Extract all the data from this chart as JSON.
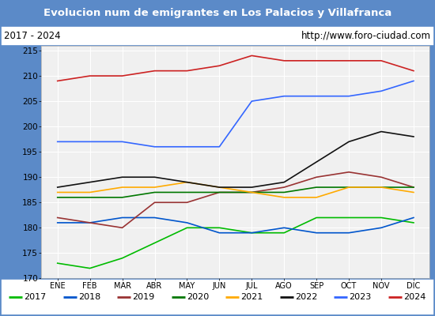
{
  "title": "Evolucion num de emigrantes en Los Palacios y Villafranca",
  "subtitle_left": "2017 - 2024",
  "subtitle_right": "http://www.foro-ciudad.com",
  "xlabel_months": [
    "ENE",
    "FEB",
    "MAR",
    "ABR",
    "MAY",
    "JUN",
    "JUL",
    "AGO",
    "SEP",
    "OCT",
    "NOV",
    "DIC"
  ],
  "ylim": [
    170,
    216
  ],
  "yticks": [
    170,
    175,
    180,
    185,
    190,
    195,
    200,
    205,
    210,
    215
  ],
  "series": {
    "2017": {
      "color": "#00bb00",
      "values": [
        173,
        172,
        174,
        177,
        180,
        180,
        179,
        179,
        182,
        182,
        182,
        181
      ]
    },
    "2018": {
      "color": "#0055cc",
      "values": [
        181,
        181,
        182,
        182,
        181,
        179,
        179,
        180,
        179,
        179,
        180,
        182
      ]
    },
    "2019": {
      "color": "#993333",
      "values": [
        182,
        181,
        180,
        185,
        185,
        187,
        187,
        188,
        190,
        191,
        190,
        188
      ]
    },
    "2020": {
      "color": "#007700",
      "values": [
        186,
        186,
        186,
        187,
        187,
        187,
        187,
        187,
        188,
        188,
        188,
        188
      ]
    },
    "2021": {
      "color": "#ffaa00",
      "values": [
        187,
        187,
        188,
        188,
        189,
        188,
        187,
        186,
        186,
        188,
        188,
        187
      ]
    },
    "2022": {
      "color": "#111111",
      "values": [
        188,
        189,
        190,
        190,
        189,
        188,
        188,
        189,
        193,
        197,
        199,
        198
      ]
    },
    "2023": {
      "color": "#3366ff",
      "values": [
        197,
        197,
        197,
        196,
        196,
        196,
        205,
        206,
        206,
        206,
        207,
        209
      ]
    },
    "2024": {
      "color": "#cc2222",
      "values": [
        209,
        210,
        210,
        211,
        211,
        212,
        214,
        213,
        213,
        213,
        213,
        211
      ]
    }
  },
  "title_bg_color": "#5b8ac8",
  "title_text_color": "#ffffff",
  "plot_bg_color": "#f0f0f0",
  "grid_color": "#ffffff",
  "border_color": "#5b8ac8",
  "legend_border_color": "#5b8ac8"
}
